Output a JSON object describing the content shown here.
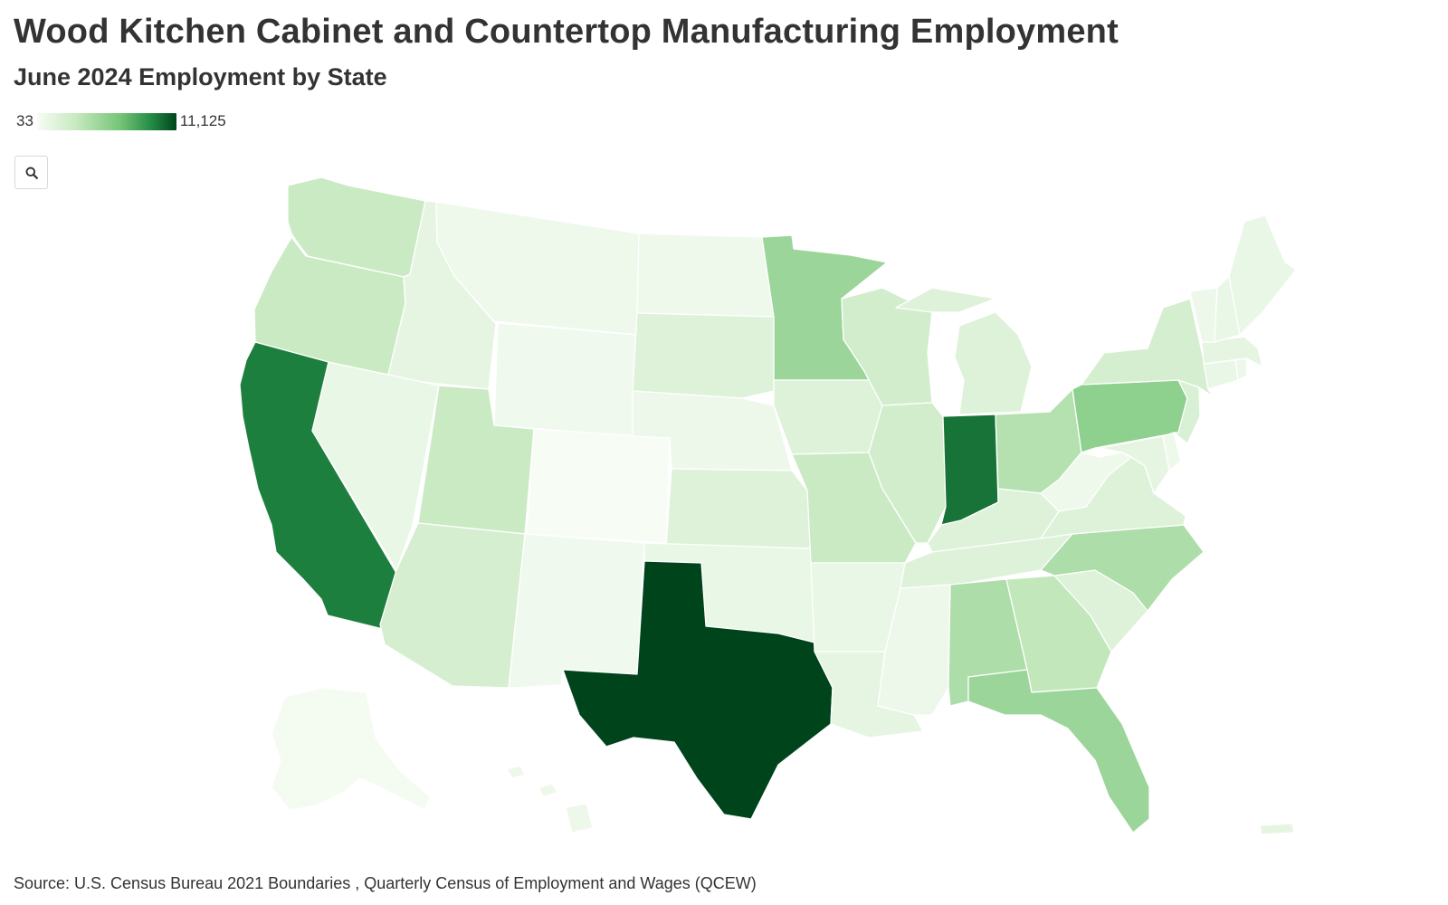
{
  "title": "Wood Kitchen Cabinet and Countertop Manufacturing Employment",
  "subtitle": "June 2024 Employment by State",
  "legend": {
    "min_label": "33",
    "max_label": "11,125",
    "min": 33,
    "max": 11125,
    "color_low": "#f7fcf5",
    "color_high": "#00441b"
  },
  "zoom_icon": "search-icon",
  "source": "Source: U.S. Census Bureau 2021 Boundaries , Quarterly Census of Employment and Wages (QCEW)",
  "states": {
    "WA": {
      "level": 0.26
    },
    "OR": {
      "level": 0.26
    },
    "CA": {
      "level": 0.85
    },
    "ID": {
      "level": 0.1
    },
    "NV": {
      "level": 0.08
    },
    "MT": {
      "level": 0.05
    },
    "WY": {
      "level": 0.04
    },
    "UT": {
      "level": 0.26
    },
    "AZ": {
      "level": 0.2
    },
    "CO": {
      "level": 0.0
    },
    "NM": {
      "level": 0.04
    },
    "ND": {
      "level": 0.05
    },
    "SD": {
      "level": 0.15
    },
    "NE": {
      "level": 0.06
    },
    "KS": {
      "level": 0.15
    },
    "OK": {
      "level": 0.08
    },
    "TX": {
      "level": 1.0
    },
    "MN": {
      "level": 0.45
    },
    "IA": {
      "level": 0.15
    },
    "MO": {
      "level": 0.26
    },
    "AR": {
      "level": 0.08
    },
    "LA": {
      "level": 0.1
    },
    "WI": {
      "level": 0.22
    },
    "IL": {
      "level": 0.22
    },
    "MI": {
      "level": 0.15
    },
    "IN": {
      "level": 0.88
    },
    "OH": {
      "level": 0.35
    },
    "KY": {
      "level": 0.15
    },
    "TN": {
      "level": 0.15
    },
    "MS": {
      "level": 0.06
    },
    "AL": {
      "level": 0.38
    },
    "GA": {
      "level": 0.3
    },
    "FL": {
      "level": 0.45
    },
    "SC": {
      "level": 0.15
    },
    "NC": {
      "level": 0.38
    },
    "VA": {
      "level": 0.15
    },
    "WV": {
      "level": 0.05
    },
    "PA": {
      "level": 0.5
    },
    "NY": {
      "level": 0.2
    },
    "NJ": {
      "level": 0.18
    },
    "MD": {
      "level": 0.1
    },
    "DE": {
      "level": 0.05
    },
    "CT": {
      "level": 0.08
    },
    "RI": {
      "level": 0.06
    },
    "MA": {
      "level": 0.1
    },
    "VT": {
      "level": 0.06
    },
    "NH": {
      "level": 0.08
    },
    "ME": {
      "level": 0.08
    },
    "AK": {
      "level": 0.02
    },
    "HI": {
      "level": 0.06
    },
    "PR": {
      "level": 0.1
    }
  }
}
